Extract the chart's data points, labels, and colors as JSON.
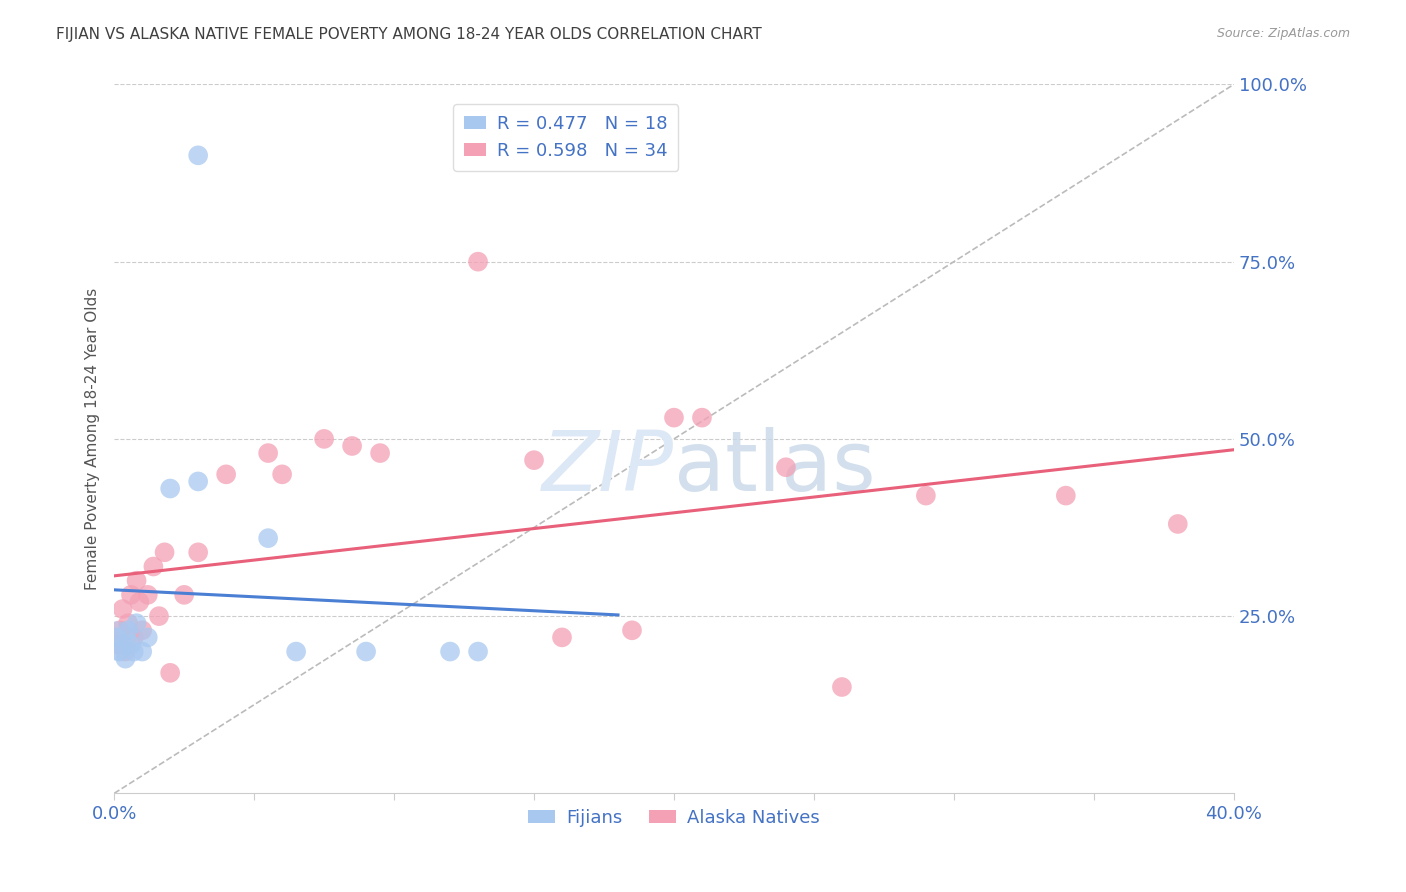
{
  "title": "FIJIAN VS ALASKA NATIVE FEMALE POVERTY AMONG 18-24 YEAR OLDS CORRELATION CHART",
  "source": "Source: ZipAtlas.com",
  "ylabel": "Female Poverty Among 18-24 Year Olds",
  "xlim": [
    0.0,
    0.4
  ],
  "ylim": [
    0.0,
    1.0
  ],
  "xticks": [
    0.0,
    0.05,
    0.1,
    0.15,
    0.2,
    0.25,
    0.3,
    0.35,
    0.4
  ],
  "yticks_right": [
    0.0,
    0.25,
    0.5,
    0.75,
    1.0
  ],
  "yticklabels_right": [
    "",
    "25.0%",
    "50.0%",
    "75.0%",
    "100.0%"
  ],
  "fijian_color": "#a8c8f0",
  "alaska_color": "#f4a0b5",
  "fijian_line_color": "#4a7fd4",
  "alaska_line_color": "#e8607a",
  "legend_r_fijian": "R = 0.477",
  "legend_n_fijian": "N = 18",
  "legend_r_alaska": "R = 0.598",
  "legend_n_alaska": "N = 34",
  "fijian_x": [
    0.001,
    0.002,
    0.003,
    0.004,
    0.005,
    0.006,
    0.007,
    0.008,
    0.01,
    0.012,
    0.02,
    0.03,
    0.055,
    0.065,
    0.09,
    0.12,
    0.13,
    0.03
  ],
  "fijian_y": [
    0.22,
    0.2,
    0.21,
    0.19,
    0.23,
    0.21,
    0.2,
    0.24,
    0.2,
    0.22,
    0.43,
    0.44,
    0.36,
    0.2,
    0.2,
    0.2,
    0.2,
    0.9
  ],
  "alaska_x": [
    0.001,
    0.002,
    0.003,
    0.004,
    0.005,
    0.006,
    0.007,
    0.008,
    0.009,
    0.01,
    0.012,
    0.014,
    0.016,
    0.018,
    0.02,
    0.025,
    0.03,
    0.04,
    0.055,
    0.06,
    0.075,
    0.085,
    0.095,
    0.13,
    0.15,
    0.16,
    0.185,
    0.2,
    0.21,
    0.24,
    0.26,
    0.29,
    0.34,
    0.38
  ],
  "alaska_y": [
    0.21,
    0.23,
    0.26,
    0.2,
    0.24,
    0.28,
    0.22,
    0.3,
    0.27,
    0.23,
    0.28,
    0.32,
    0.25,
    0.34,
    0.17,
    0.28,
    0.34,
    0.45,
    0.48,
    0.45,
    0.5,
    0.49,
    0.48,
    0.75,
    0.47,
    0.22,
    0.23,
    0.53,
    0.53,
    0.46,
    0.15,
    0.42,
    0.42,
    0.38
  ],
  "fijian_large_x": [
    0.001
  ],
  "fijian_large_y": [
    0.22
  ],
  "background_color": "#ffffff",
  "grid_color": "#cccccc",
  "axis_label_color": "#4472c4",
  "title_color": "#404040",
  "watermark_color": "#dce8f5"
}
